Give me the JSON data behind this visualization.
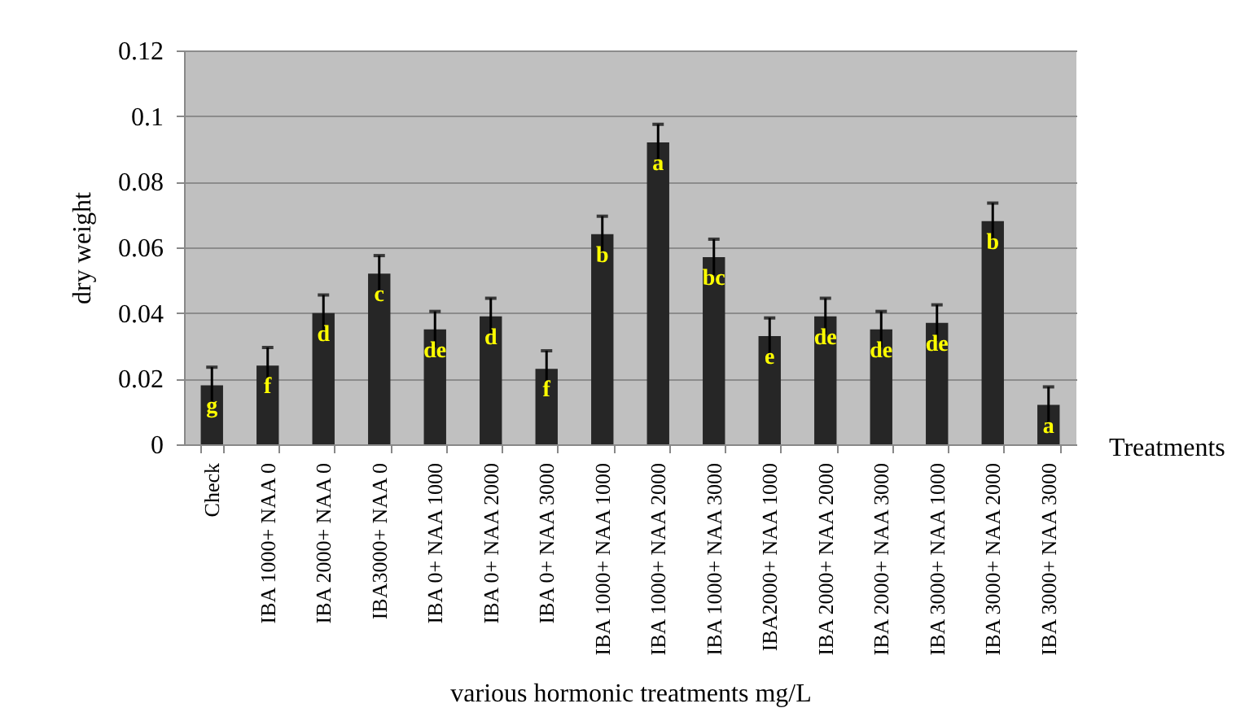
{
  "chart_data": {
    "type": "bar",
    "xlabel": "various hormonic treatments mg/L",
    "ylabel": "dry weight",
    "categories": [
      "Check",
      "IBA 1000+ NAA 0",
      "IBA 2000+ NAA 0",
      "IBA3000+ NAA 0",
      "IBA 0+ NAA 1000",
      "IBA 0+ NAA 2000",
      "IBA 0+ NAA 3000",
      "IBA 1000+ NAA 1000",
      "IBA 1000+ NAA 2000",
      "IBA 1000+ NAA 3000",
      "IBA2000+ NAA 1000",
      "IBA 2000+ NAA 2000",
      "IBA 2000+ NAA 3000",
      "IBA 3000+ NAA 1000",
      "IBA 3000+ NAA 2000",
      "IBA 3000+ NAA 3000"
    ],
    "series": [
      {
        "name": "Treatments",
        "color": "#262626",
        "values": [
          0.018,
          0.024,
          0.04,
          0.052,
          0.035,
          0.039,
          0.023,
          0.064,
          0.092,
          0.057,
          0.033,
          0.039,
          0.035,
          0.037,
          0.068,
          0.012
        ],
        "errors": [
          0.0055,
          0.0055,
          0.0055,
          0.0055,
          0.0055,
          0.0055,
          0.0055,
          0.0055,
          0.0055,
          0.0055,
          0.0055,
          0.0055,
          0.0055,
          0.0055,
          0.0055,
          0.0055
        ]
      }
    ],
    "ylim": [
      0,
      0.12
    ],
    "yticks": [
      0,
      0.02,
      0.04,
      0.06,
      0.08,
      0.1,
      0.12
    ],
    "grid": "y",
    "legend": "right",
    "annotations": [
      {
        "text": "g",
        "x": "Check",
        "y": 0.018
      },
      {
        "text": "f",
        "x": "IBA 1000+ NAA 0",
        "y": 0.024
      },
      {
        "text": "d",
        "x": "IBA 2000+ NAA 0",
        "y": 0.04
      },
      {
        "text": "c",
        "x": "IBA3000+ NAA 0",
        "y": 0.052
      },
      {
        "text": "de",
        "x": "IBA 0+ NAA 1000",
        "y": 0.035
      },
      {
        "text": "d",
        "x": "IBA 0+ NAA 2000",
        "y": 0.039
      },
      {
        "text": "f",
        "x": "IBA 0+ NAA 3000",
        "y": 0.023
      },
      {
        "text": "b",
        "x": "IBA 1000+ NAA 1000",
        "y": 0.064
      },
      {
        "text": "a",
        "x": "IBA 1000+ NAA 2000",
        "y": 0.092
      },
      {
        "text": "bc",
        "x": "IBA 1000+ NAA 3000",
        "y": 0.057
      },
      {
        "text": "e",
        "x": "IBA2000+ NAA 1000",
        "y": 0.033
      },
      {
        "text": "de",
        "x": "IBA 2000+ NAA 2000",
        "y": 0.039
      },
      {
        "text": "de",
        "x": "IBA 2000+ NAA 3000",
        "y": 0.035
      },
      {
        "text": "de",
        "x": "IBA 3000+ NAA 1000",
        "y": 0.037
      },
      {
        "text": "b",
        "x": "IBA 3000+ NAA 2000",
        "y": 0.068
      },
      {
        "text": "a",
        "x": "IBA 3000+ NAA 3000",
        "y": 0.012
      }
    ]
  }
}
